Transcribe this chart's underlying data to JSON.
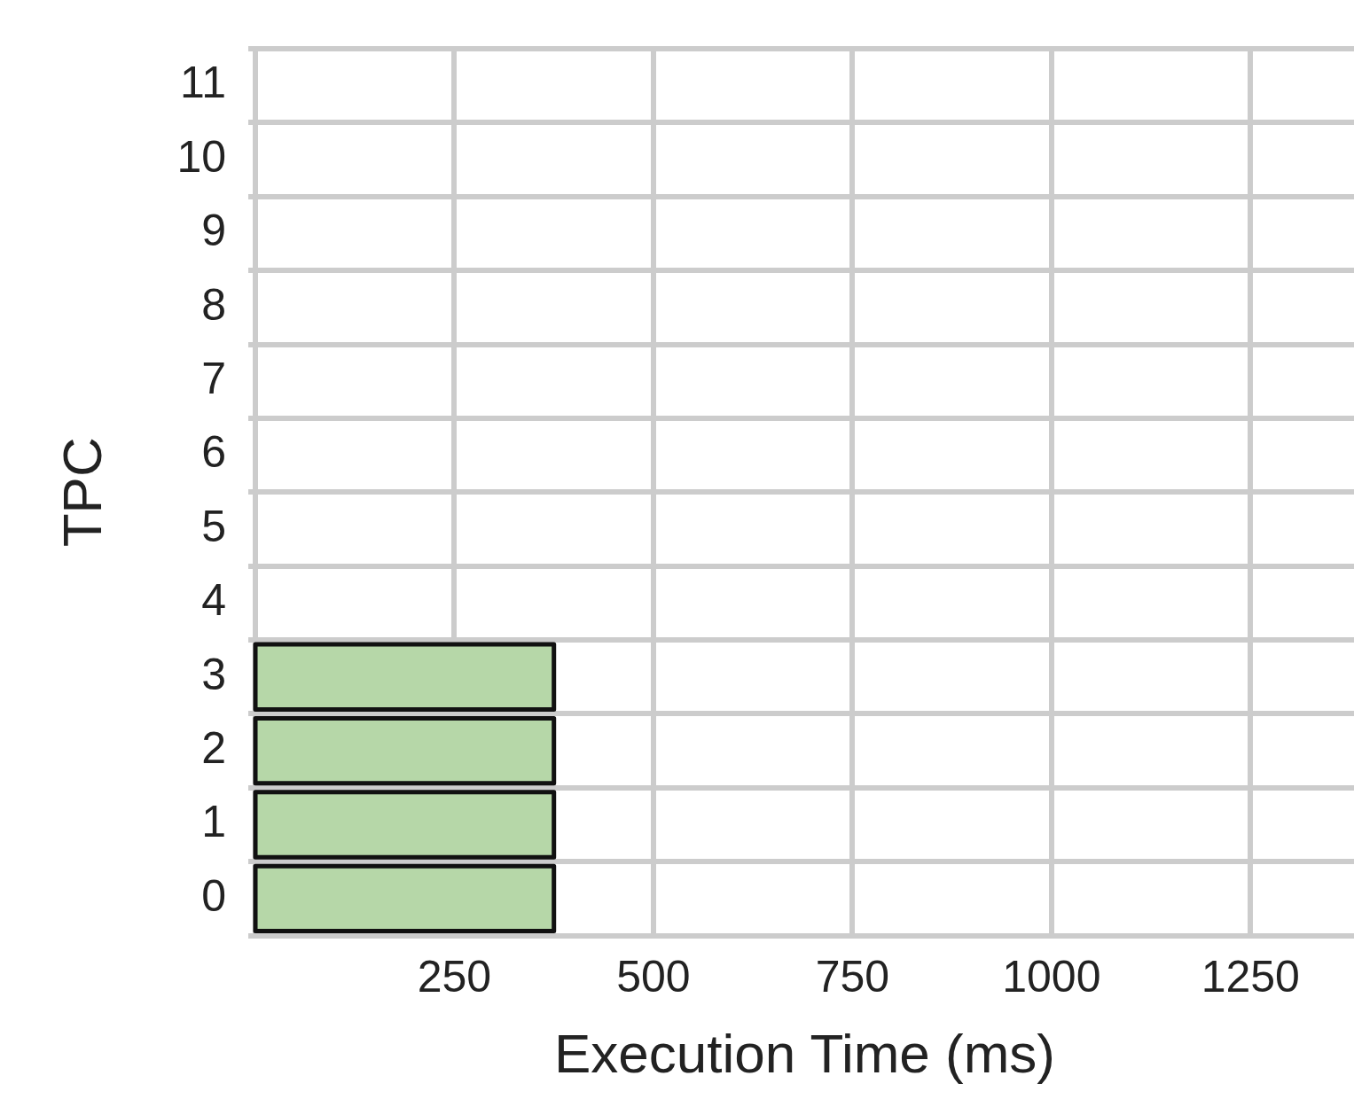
{
  "chart_data": {
    "type": "bar",
    "orientation": "horizontal",
    "xlabel": "Execution Time (ms)",
    "ylabel": "TPC",
    "categories": [
      "11",
      "10",
      "9",
      "8",
      "7",
      "6",
      "5",
      "4",
      "3",
      "2",
      "1",
      "0"
    ],
    "values": [
      null,
      null,
      null,
      null,
      null,
      null,
      null,
      null,
      375,
      375,
      375,
      375
    ],
    "color": "#b6d7a8",
    "xlim": [
      0,
      1380
    ],
    "xticks": [
      250,
      500,
      750,
      1000,
      1250
    ],
    "grid": true,
    "legend": false
  }
}
